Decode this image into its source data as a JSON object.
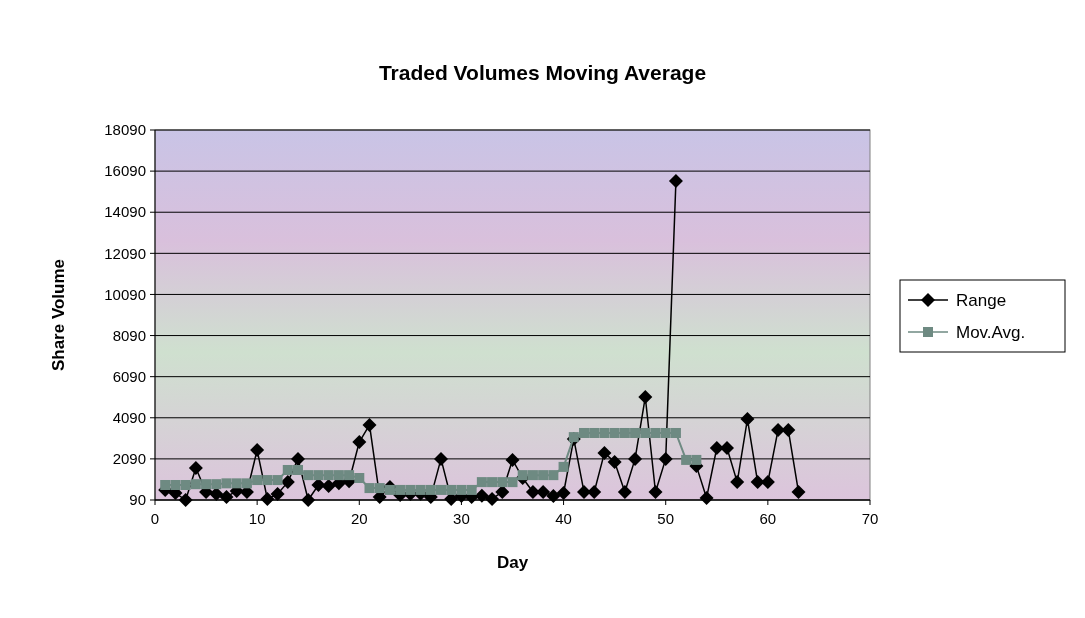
{
  "chart_data": {
    "type": "line",
    "title": "Traded Volumes Moving Average",
    "xlabel": "Day",
    "ylabel": "Share Volume",
    "x": [
      1,
      2,
      3,
      4,
      5,
      6,
      7,
      8,
      9,
      10,
      11,
      12,
      13,
      14,
      15,
      16,
      17,
      18,
      19,
      20,
      21,
      22,
      23,
      24,
      25,
      26,
      27,
      28,
      29,
      30,
      31,
      32,
      33,
      34,
      35,
      36,
      37,
      38,
      39,
      40,
      41,
      42,
      43,
      44,
      45,
      46,
      47,
      48,
      49,
      50,
      51,
      52,
      53,
      54,
      55,
      56,
      57,
      58,
      59,
      60,
      61,
      62,
      63
    ],
    "series": [
      {
        "name": "Range",
        "color": "#000000",
        "marker": "diamond",
        "values": [
          580,
          430,
          90,
          1650,
          480,
          380,
          240,
          530,
          480,
          2520,
          140,
          380,
          960,
          2090,
          90,
          820,
          770,
          900,
          1000,
          2910,
          3740,
          240,
          720,
          330,
          380,
          400,
          240,
          2090,
          140,
          290,
          240,
          300,
          140,
          480,
          2040,
          1160,
          480,
          480,
          290,
          430,
          3060,
          480,
          480,
          2380,
          1940,
          480,
          2090,
          5100,
          480,
          2090,
          15610,
          null,
          1750,
          190,
          2620,
          2620,
          960,
          4030,
          960,
          960,
          3500,
          3500,
          480
        ]
      },
      {
        "name": "Mov.Avg.",
        "color": "#6e8a82",
        "marker": "square",
        "values": [
          820,
          820,
          820,
          860,
          860,
          860,
          900,
          900,
          900,
          1060,
          1060,
          1060,
          1550,
          1550,
          1300,
          1300,
          1300,
          1300,
          1300,
          1160,
          670,
          670,
          580,
          580,
          580,
          580,
          580,
          580,
          580,
          580,
          580,
          960,
          960,
          960,
          960,
          1300,
          1300,
          1300,
          1300,
          1700,
          3150,
          3350,
          3350,
          3350,
          3350,
          3350,
          3350,
          3350,
          3350,
          3350,
          3350,
          2040,
          2040,
          null,
          null,
          null,
          null,
          null,
          null,
          null,
          null,
          null,
          null
        ]
      }
    ],
    "xlim": [
      0,
      70
    ],
    "xticks": [
      0,
      10,
      20,
      30,
      40,
      50,
      60,
      70
    ],
    "ylim": [
      90,
      18090
    ],
    "yticks": [
      90,
      2090,
      4090,
      6090,
      8090,
      10090,
      12090,
      14090,
      16090,
      18090
    ],
    "grid": "y",
    "legend": "right",
    "line_style": "solid"
  }
}
